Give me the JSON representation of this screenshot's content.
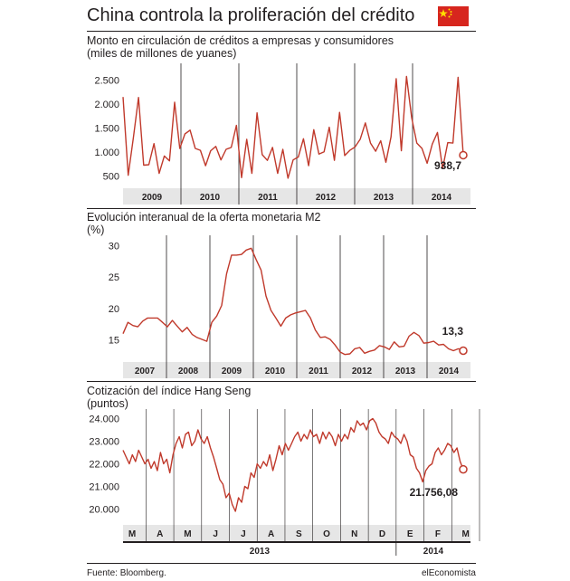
{
  "header": {
    "title": "China controla la proliferación del crédito",
    "flag": "china-flag"
  },
  "colors": {
    "series": "#c0392b",
    "band": "#e6e6e6",
    "flag_red": "#d7261e",
    "flag_yellow": "#ffde00"
  },
  "footer": {
    "source": "Fuente: Bloomberg.",
    "brand": "elEconomista"
  },
  "chart_data": [
    {
      "type": "line",
      "title": "Monto en circulación de créditos a empresas y consumidores",
      "subtitle": "(miles de millones de yuanes)",
      "ylim": [
        250,
        2700
      ],
      "yticks": [
        500,
        1000,
        1500,
        2000,
        2500
      ],
      "ytick_labels": [
        "500",
        "1.000",
        "1.500",
        "2.000",
        "2.500"
      ],
      "year_labels": [
        "2009",
        "2010",
        "2011",
        "2012",
        "2013",
        "2014"
      ],
      "values": [
        2150,
        520,
        1300,
        2140,
        730,
        740,
        1180,
        560,
        920,
        820,
        2040,
        1080,
        1380,
        1460,
        1080,
        1040,
        720,
        1030,
        1120,
        840,
        1060,
        1100,
        1560,
        470,
        1270,
        560,
        1820,
        950,
        830,
        1100,
        560,
        1060,
        460,
        840,
        900,
        1280,
        720,
        1470,
        960,
        1010,
        1520,
        830,
        1830,
        930,
        1040,
        1110,
        1270,
        1610,
        1190,
        1020,
        1240,
        790,
        1320,
        2530,
        1030,
        2580,
        1720,
        1190,
        1080,
        770,
        1170,
        1410,
        660,
        1200,
        1190,
        2560,
        939
      ],
      "last_label": "938,7",
      "grid": "vertical year separators"
    },
    {
      "type": "line",
      "title": "Evolución interanual de la oferta monetaria M2",
      "subtitle": "(%)",
      "ylim": [
        11.5,
        30.5
      ],
      "yticks": [
        15,
        20,
        25,
        30
      ],
      "ytick_labels": [
        "15",
        "20",
        "25",
        "30"
      ],
      "year_labels": [
        "2007",
        "2008",
        "2009",
        "2010",
        "2011",
        "2012",
        "2013",
        "2014"
      ],
      "values": [
        16,
        17.8,
        17.3,
        17.1,
        18,
        18.5,
        18.5,
        18.5,
        17.8,
        17.1,
        18.1,
        17.2,
        16.3,
        17,
        15.9,
        15.4,
        15.1,
        14.8,
        17.8,
        18.8,
        20.5,
        25.5,
        28.5,
        28.5,
        28.6,
        29.3,
        29.6,
        27.8,
        26.1,
        22,
        19.7,
        18.5,
        17.2,
        18.5,
        19,
        19.3,
        19.5,
        19.7,
        18.5,
        16.6,
        15.4,
        15.5,
        15.1,
        14.2,
        13.1,
        12.7,
        12.8,
        13.6,
        13.8,
        12.9,
        13.2,
        13.4,
        14.1,
        13.9,
        13.5,
        14.7,
        13.9,
        14,
        15.6,
        16.2,
        15.7,
        14.5,
        14.6,
        14.8,
        14.2,
        14.3,
        13.6,
        13.3,
        13.6,
        13.3
      ],
      "last_label": "13,3"
    },
    {
      "type": "line",
      "title": "Cotización del índice Hang Seng",
      "subtitle": "(puntos)",
      "ylim": [
        19300,
        24100
      ],
      "yticks": [
        20000,
        21000,
        22000,
        23000,
        24000
      ],
      "ytick_labels": [
        "20.000",
        "21.000",
        "22.000",
        "23.000",
        "24.000"
      ],
      "month_labels": [
        "M",
        "A",
        "M",
        "J",
        "J",
        "A",
        "S",
        "O",
        "N",
        "D",
        "E",
        "F",
        "M"
      ],
      "year_labels": [
        "2013",
        "2014"
      ],
      "values": [
        22600,
        22300,
        22000,
        22400,
        22100,
        22600,
        22300,
        22000,
        22200,
        21800,
        22100,
        21700,
        22500,
        22000,
        22200,
        21600,
        22400,
        22900,
        23200,
        22700,
        23300,
        23400,
        22800,
        23000,
        23500,
        23100,
        22900,
        23200,
        22700,
        22300,
        21800,
        21300,
        21100,
        20500,
        20700,
        20200,
        19900,
        20500,
        20300,
        21000,
        20900,
        21600,
        21400,
        22000,
        21800,
        22100,
        21900,
        22400,
        21700,
        22200,
        22800,
        22400,
        22900,
        22600,
        22900,
        23200,
        23400,
        23000,
        23300,
        23100,
        23500,
        23200,
        23300,
        22900,
        23400,
        23100,
        23400,
        23200,
        22800,
        23300,
        23000,
        23300,
        23100,
        23600,
        23400,
        23900,
        23700,
        23800,
        23500,
        23900,
        24000,
        23800,
        23400,
        23200,
        23100,
        22900,
        23400,
        23200,
        23100,
        22900,
        23300,
        23000,
        22400,
        22300,
        21800,
        21600,
        21200,
        21700,
        21900,
        22000,
        22500,
        22700,
        22400,
        22600,
        22900,
        22800,
        22500,
        22700,
        22100,
        21756
      ],
      "last_label": "21.756,08"
    }
  ]
}
